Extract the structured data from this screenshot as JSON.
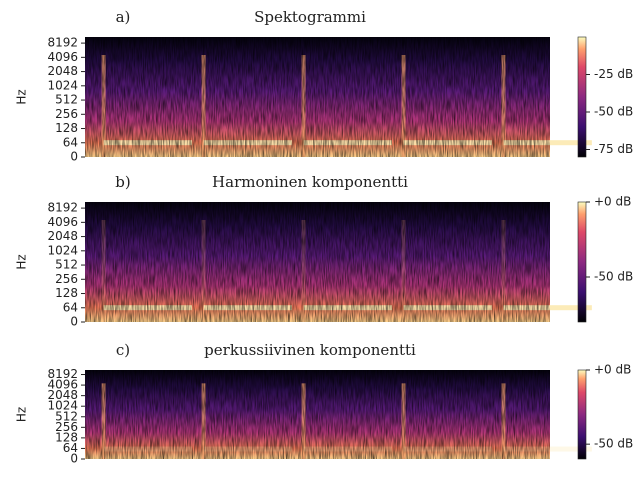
{
  "chart_data": [
    {
      "type": "spectrogram",
      "panel_label": "a)",
      "title": "Spektogrammi",
      "ylabel": "Hz",
      "yscale": "symlog",
      "linthresh": 64,
      "ylim": [
        0,
        11025
      ],
      "yticks": [
        0,
        64,
        128,
        256,
        512,
        1024,
        2048,
        4096,
        8192
      ],
      "colormap": "magma",
      "clim": [
        -80,
        0
      ],
      "cticks": [
        {
          "value": -25,
          "label": "-25 dB"
        },
        {
          "value": -50,
          "label": "-50 dB"
        },
        {
          "value": -75,
          "label": "-75 dB"
        }
      ]
    },
    {
      "type": "spectrogram",
      "panel_label": "b)",
      "title": "Harmoninen komponentti",
      "ylabel": "Hz",
      "yscale": "symlog",
      "linthresh": 64,
      "ylim": [
        0,
        11025
      ],
      "yticks": [
        0,
        64,
        128,
        256,
        512,
        1024,
        2048,
        4096,
        8192
      ],
      "colormap": "magma",
      "clim": [
        -80,
        0
      ],
      "cticks": [
        {
          "value": 0,
          "label": "+0 dB"
        },
        {
          "value": -50,
          "label": "-50 dB"
        }
      ]
    },
    {
      "type": "spectrogram",
      "panel_label": "c)",
      "title": "perkussiivinen komponentti",
      "ylabel": "Hz",
      "yscale": "symlog",
      "linthresh": 64,
      "ylim": [
        0,
        11025
      ],
      "yticks": [
        0,
        64,
        128,
        256,
        512,
        1024,
        2048,
        4096,
        8192
      ],
      "colormap": "magma",
      "clim": [
        -60,
        0
      ],
      "cticks": [
        {
          "value": 0,
          "label": "+0 dB"
        },
        {
          "value": -50,
          "label": "-50 dB"
        }
      ]
    }
  ]
}
